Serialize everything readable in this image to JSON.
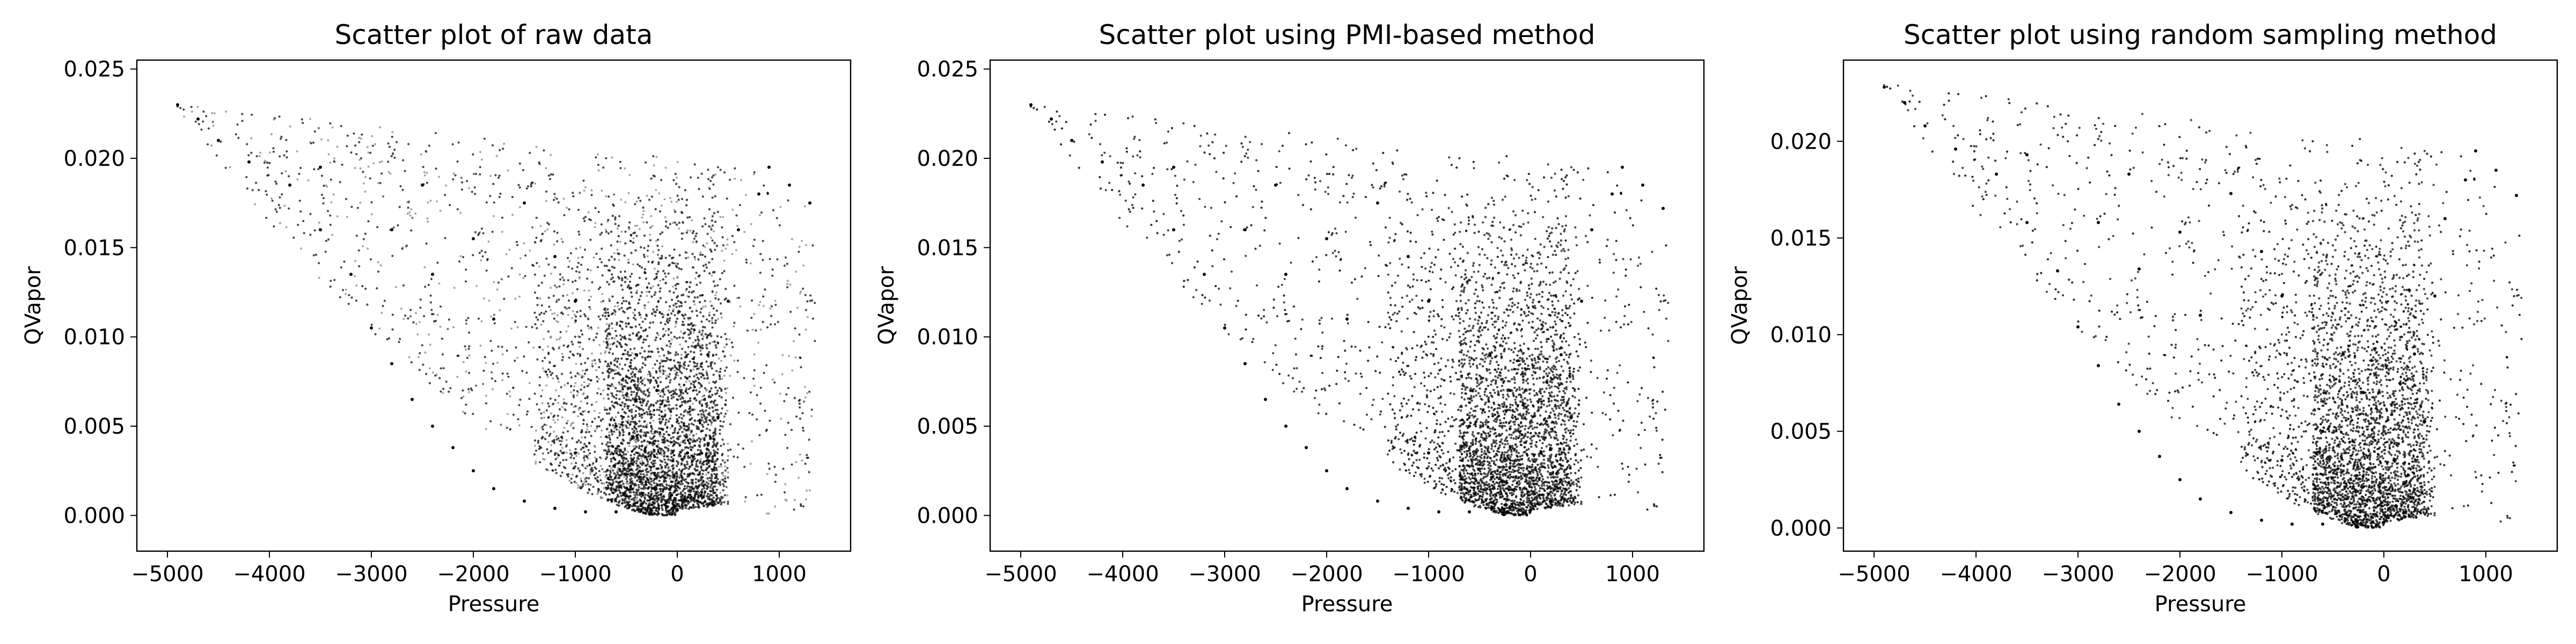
{
  "chart_data": [
    {
      "type": "scatter",
      "title": "Scatter plot of raw data",
      "xlabel": "Pressure",
      "ylabel": "QVapor",
      "xlim": [
        -5300,
        1700
      ],
      "ylim": [
        -0.002,
        0.0255
      ],
      "xticks": [
        -5000,
        -4000,
        -3000,
        -2000,
        -1000,
        0,
        1000
      ],
      "xtick_labels": [
        "−5000",
        "−4000",
        "−3000",
        "−2000",
        "−1000",
        "0",
        "1000"
      ],
      "yticks": [
        0.0,
        0.005,
        0.01,
        0.015,
        0.02,
        0.025
      ],
      "ytick_labels": [
        "0.000",
        "0.005",
        "0.010",
        "0.015",
        "0.020",
        "0.025"
      ],
      "grid": false,
      "marker_color": "#000000",
      "series": [
        {
          "points": [
            [
              -4900,
              0.023
            ],
            [
              -4700,
              0.0222
            ],
            [
              -4500,
              0.021
            ],
            [
              -4200,
              0.0198
            ],
            [
              -3800,
              0.0185
            ],
            [
              -3500,
              0.016
            ],
            [
              -3200,
              0.0135
            ],
            [
              -3000,
              0.0105
            ],
            [
              -2800,
              0.0085
            ],
            [
              -2600,
              0.0065
            ],
            [
              -2400,
              0.005
            ],
            [
              -2200,
              0.0038
            ],
            [
              -2000,
              0.0025
            ],
            [
              -1800,
              0.0015
            ],
            [
              -1500,
              0.0008
            ],
            [
              -1200,
              0.0004
            ],
            [
              -900,
              0.0002
            ],
            [
              -600,
              0.0002
            ],
            [
              -300,
              0.0003
            ],
            [
              0,
              0.0003
            ],
            [
              200,
              0.0008
            ],
            [
              100,
              0.0035
            ],
            [
              400,
              0.0055
            ],
            [
              -200,
              0.007
            ],
            [
              300,
              0.009
            ],
            [
              500,
              0.012
            ],
            [
              600,
              0.016
            ],
            [
              900,
              0.0195
            ],
            [
              1100,
              0.0185
            ],
            [
              1300,
              0.0175
            ],
            [
              800,
              0.018
            ],
            [
              -1500,
              0.0175
            ],
            [
              -2500,
              0.0185
            ],
            [
              -3500,
              0.0195
            ],
            [
              -1000,
              0.012
            ],
            [
              -1800,
              0.011
            ],
            [
              -2400,
              0.0135
            ],
            [
              -600,
              0.005
            ],
            [
              -1000,
              0.0035
            ],
            [
              -2800,
              0.016
            ],
            [
              -2000,
              0.0155
            ],
            [
              -1200,
              0.0145
            ],
            [
              -400,
              0.009
            ]
          ]
        }
      ]
    },
    {
      "type": "scatter",
      "title": "Scatter plot using PMI-based method",
      "xlabel": "Pressure",
      "ylabel": "QVapor",
      "xlim": [
        -5300,
        1700
      ],
      "ylim": [
        -0.002,
        0.0255
      ],
      "xticks": [
        -5000,
        -4000,
        -3000,
        -2000,
        -1000,
        0,
        1000
      ],
      "xtick_labels": [
        "−5000",
        "−4000",
        "−3000",
        "−2000",
        "−1000",
        "0",
        "1000"
      ],
      "yticks": [
        0.0,
        0.005,
        0.01,
        0.015,
        0.02,
        0.025
      ],
      "ytick_labels": [
        "0.000",
        "0.005",
        "0.010",
        "0.015",
        "0.020",
        "0.025"
      ],
      "grid": false,
      "marker_color": "#000000",
      "series": [
        {
          "points": [
            [
              -4900,
              0.023
            ],
            [
              -4700,
              0.0222
            ],
            [
              -4500,
              0.021
            ],
            [
              -4200,
              0.0198
            ],
            [
              -3800,
              0.0185
            ],
            [
              -3500,
              0.016
            ],
            [
              -3200,
              0.0135
            ],
            [
              -3000,
              0.0105
            ],
            [
              -2800,
              0.0085
            ],
            [
              -2600,
              0.0065
            ],
            [
              -2400,
              0.005
            ],
            [
              -2200,
              0.0038
            ],
            [
              -2000,
              0.0025
            ],
            [
              -1800,
              0.0015
            ],
            [
              -1500,
              0.0008
            ],
            [
              -1200,
              0.0004
            ],
            [
              -900,
              0.0002
            ],
            [
              -600,
              0.0002
            ],
            [
              -300,
              0.0003
            ],
            [
              0,
              0.0003
            ],
            [
              200,
              0.0008
            ],
            [
              100,
              0.0035
            ],
            [
              400,
              0.0055
            ],
            [
              -200,
              0.007
            ],
            [
              300,
              0.009
            ],
            [
              500,
              0.012
            ],
            [
              600,
              0.016
            ],
            [
              900,
              0.0195
            ],
            [
              1100,
              0.0185
            ],
            [
              1300,
              0.0172
            ],
            [
              800,
              0.018
            ],
            [
              -1500,
              0.0175
            ],
            [
              -2500,
              0.0185
            ],
            [
              -3500,
              0.0195
            ],
            [
              -1000,
              0.012
            ],
            [
              -1800,
              0.011
            ],
            [
              -2400,
              0.0135
            ],
            [
              -600,
              0.005
            ],
            [
              -1000,
              0.0035
            ],
            [
              -2800,
              0.016
            ],
            [
              -2000,
              0.0155
            ],
            [
              -1200,
              0.0145
            ],
            [
              -400,
              0.009
            ]
          ]
        }
      ]
    },
    {
      "type": "scatter",
      "title": "Scatter plot using random sampling method",
      "xlabel": "Pressure",
      "ylabel": "QVapor",
      "xlim": [
        -5300,
        1700
      ],
      "ylim": [
        -0.0012,
        0.0242
      ],
      "xticks": [
        -5000,
        -4000,
        -3000,
        -2000,
        -1000,
        0,
        1000
      ],
      "xtick_labels": [
        "−5000",
        "−4000",
        "−3000",
        "−2000",
        "−1000",
        "0",
        "1000"
      ],
      "yticks": [
        0.0,
        0.005,
        0.01,
        0.015,
        0.02
      ],
      "ytick_labels": [
        "0.000",
        "0.005",
        "0.010",
        "0.015",
        "0.020"
      ],
      "grid": false,
      "marker_color": "#000000",
      "series": [
        {
          "points": [
            [
              -4900,
              0.0228
            ],
            [
              -4700,
              0.022
            ],
            [
              -4500,
              0.0208
            ],
            [
              -4200,
              0.0196
            ],
            [
              -3800,
              0.0183
            ],
            [
              -3500,
              0.0158
            ],
            [
              -3200,
              0.0133
            ],
            [
              -3000,
              0.0104
            ],
            [
              -2800,
              0.0084
            ],
            [
              -2600,
              0.0064
            ],
            [
              -2400,
              0.005
            ],
            [
              -2200,
              0.0037
            ],
            [
              -2000,
              0.0025
            ],
            [
              -1800,
              0.0015
            ],
            [
              -1500,
              0.0008
            ],
            [
              -1200,
              0.0004
            ],
            [
              -900,
              0.0002
            ],
            [
              -600,
              0.0002
            ],
            [
              -300,
              0.0003
            ],
            [
              0,
              0.0003
            ],
            [
              200,
              0.0008
            ],
            [
              100,
              0.0035
            ],
            [
              400,
              0.0055
            ],
            [
              -200,
              0.007
            ],
            [
              300,
              0.009
            ],
            [
              500,
              0.012
            ],
            [
              600,
              0.016
            ],
            [
              900,
              0.0195
            ],
            [
              1100,
              0.0185
            ],
            [
              1300,
              0.0172
            ],
            [
              800,
              0.018
            ],
            [
              -1500,
              0.0173
            ],
            [
              -2500,
              0.0183
            ],
            [
              -3500,
              0.0193
            ],
            [
              -1000,
              0.012
            ],
            [
              -1800,
              0.011
            ],
            [
              -2400,
              0.0134
            ],
            [
              -600,
              0.005
            ],
            [
              -1000,
              0.0035
            ],
            [
              -2800,
              0.0158
            ],
            [
              -2000,
              0.0153
            ],
            [
              -1200,
              0.0143
            ],
            [
              -400,
              0.009
            ]
          ]
        }
      ]
    }
  ]
}
